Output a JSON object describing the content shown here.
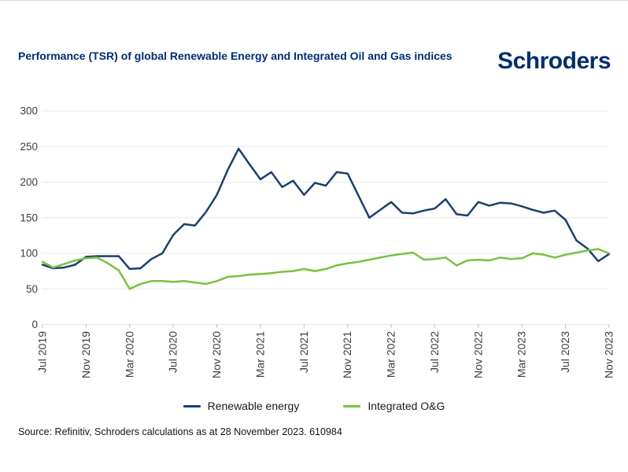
{
  "header": {
    "title": "Performance (TSR) of global Renewable Energy and Integrated Oil and Gas indices",
    "logo": "Schroders"
  },
  "source_note": "Source: Refinitiv, Schroders calculations as at 28 November 2023. 610984",
  "colors": {
    "title_navy": "#002d72",
    "logo_navy": "#042f6c",
    "renewable_line": "#1c3f70",
    "oag_line": "#79c143",
    "gridline": "#e7e7e7",
    "tick_mark": "#bbbbbb",
    "axis_text": "#3d3d3d",
    "legend_text": "#1a1a1a"
  },
  "chart_data": {
    "type": "line",
    "title": "Performance (TSR) of global Renewable Energy and Integrated Oil and Gas indices",
    "xlabel": "",
    "ylabel": "",
    "ylim": [
      0,
      300
    ],
    "yticks": [
      0,
      50,
      100,
      150,
      200,
      250,
      300
    ],
    "grid": "horizontal",
    "legend_position": "bottom",
    "x_tick_every": 4,
    "x_tick_labels": [
      "Jul 2019",
      "Nov 2019",
      "Mar 2020",
      "Jul 2020",
      "Nov 2020",
      "Mar 2021",
      "Jul 2021",
      "Nov 2021",
      "Mar 2022",
      "Jul 2022",
      "Nov 2022",
      "Mar 2023",
      "Jul 2023",
      "Nov 2023"
    ],
    "x": [
      "Jul 2019",
      "Aug 2019",
      "Sep 2019",
      "Oct 2019",
      "Nov 2019",
      "Dec 2019",
      "Jan 2020",
      "Feb 2020",
      "Mar 2020",
      "Apr 2020",
      "May 2020",
      "Jun 2020",
      "Jul 2020",
      "Aug 2020",
      "Sep 2020",
      "Oct 2020",
      "Nov 2020",
      "Dec 2020",
      "Jan 2021",
      "Feb 2021",
      "Mar 2021",
      "Apr 2021",
      "May 2021",
      "Jun 2021",
      "Jul 2021",
      "Aug 2021",
      "Sep 2021",
      "Oct 2021",
      "Nov 2021",
      "Dec 2021",
      "Jan 2022",
      "Feb 2022",
      "Mar 2022",
      "Apr 2022",
      "May 2022",
      "Jun 2022",
      "Jul 2022",
      "Aug 2022",
      "Sep 2022",
      "Oct 2022",
      "Nov 2022",
      "Dec 2022",
      "Jan 2023",
      "Feb 2023",
      "Mar 2023",
      "Apr 2023",
      "May 2023",
      "Jun 2023",
      "Jul 2023",
      "Aug 2023",
      "Sep 2023",
      "Oct 2023",
      "Nov 2023"
    ],
    "series": [
      {
        "name": "Renewable energy",
        "color": "#1c3f70",
        "values": [
          84,
          79,
          80,
          84,
          95,
          96,
          96,
          96,
          78,
          79,
          92,
          100,
          126,
          141,
          139,
          158,
          182,
          217,
          247,
          225,
          204,
          214,
          193,
          202,
          182,
          199,
          195,
          214,
          212,
          181,
          150,
          161,
          172,
          157,
          156,
          160,
          163,
          176,
          155,
          153,
          172,
          167,
          171,
          170,
          166,
          161,
          157,
          160,
          147,
          118,
          107,
          89,
          99
        ]
      },
      {
        "name": "Integrated O&G",
        "color": "#79c143",
        "values": [
          88,
          80,
          85,
          90,
          93,
          94,
          86,
          76,
          50,
          57,
          61,
          61,
          60,
          61,
          59,
          57,
          61,
          67,
          68,
          70,
          71,
          72,
          74,
          75,
          78,
          75,
          78,
          83,
          86,
          88,
          91,
          94,
          97,
          99,
          101,
          91,
          92,
          94,
          83,
          90,
          91,
          90,
          94,
          92,
          93,
          100,
          98,
          94,
          98,
          101,
          104,
          106,
          100
        ]
      }
    ]
  }
}
